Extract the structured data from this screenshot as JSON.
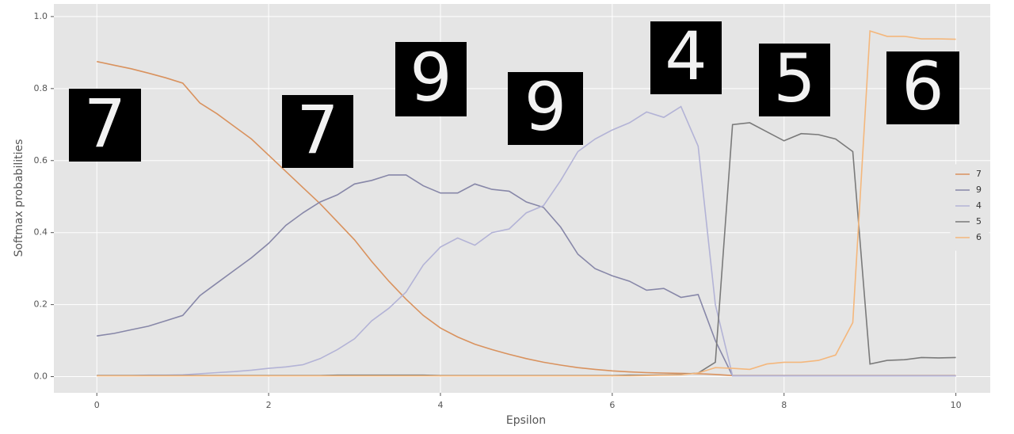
{
  "chart_data": {
    "type": "line",
    "xlabel": "Epsilon",
    "ylabel": "Softmax probabilities",
    "x": [
      0,
      0.2,
      0.4,
      0.6,
      0.8,
      1.0,
      1.2,
      1.4,
      1.6,
      1.8,
      2.0,
      2.2,
      2.4,
      2.6,
      2.8,
      3.0,
      3.2,
      3.4,
      3.6,
      3.8,
      4.0,
      4.2,
      4.4,
      4.6,
      4.8,
      5.0,
      5.2,
      5.4,
      5.6,
      5.8,
      6.0,
      6.2,
      6.4,
      6.6,
      6.8,
      7.0,
      7.2,
      7.4,
      7.6,
      7.8,
      8.0,
      8.2,
      8.4,
      8.6,
      8.8,
      9.0,
      9.2,
      9.4,
      9.6,
      9.8,
      10.0
    ],
    "series": [
      {
        "name": "7",
        "color": "#d9925e",
        "values": [
          0.875,
          0.865,
          0.855,
          0.843,
          0.83,
          0.815,
          0.76,
          0.73,
          0.695,
          0.66,
          0.615,
          0.57,
          0.525,
          0.48,
          0.43,
          0.38,
          0.32,
          0.265,
          0.215,
          0.17,
          0.135,
          0.11,
          0.09,
          0.075,
          0.062,
          0.05,
          0.04,
          0.032,
          0.025,
          0.02,
          0.016,
          0.013,
          0.011,
          0.01,
          0.009,
          0.008,
          0.006,
          0.003,
          0.003,
          0.003,
          0.003,
          0.003,
          0.003,
          0.003,
          0.003,
          0.003,
          0.003,
          0.003,
          0.003,
          0.003,
          0.003
        ]
      },
      {
        "name": "9",
        "color": "#8787a8",
        "values": [
          0.113,
          0.12,
          0.13,
          0.14,
          0.155,
          0.17,
          0.225,
          0.26,
          0.295,
          0.33,
          0.37,
          0.42,
          0.455,
          0.485,
          0.505,
          0.535,
          0.545,
          0.56,
          0.56,
          0.53,
          0.51,
          0.51,
          0.535,
          0.52,
          0.515,
          0.485,
          0.47,
          0.415,
          0.34,
          0.3,
          0.28,
          0.265,
          0.24,
          0.245,
          0.22,
          0.228,
          0.1,
          0.002,
          0.002,
          0.002,
          0.002,
          0.002,
          0.002,
          0.002,
          0.002,
          0.002,
          0.002,
          0.002,
          0.002,
          0.002,
          0.002
        ]
      },
      {
        "name": "4",
        "color": "#b3b3d6",
        "values": [
          0.003,
          0.003,
          0.003,
          0.004,
          0.004,
          0.005,
          0.008,
          0.011,
          0.014,
          0.018,
          0.023,
          0.027,
          0.033,
          0.05,
          0.075,
          0.105,
          0.155,
          0.19,
          0.235,
          0.31,
          0.36,
          0.385,
          0.365,
          0.4,
          0.41,
          0.455,
          0.475,
          0.545,
          0.625,
          0.66,
          0.685,
          0.705,
          0.735,
          0.72,
          0.75,
          0.64,
          0.2,
          0.002,
          0.002,
          0.002,
          0.002,
          0.002,
          0.002,
          0.002,
          0.002,
          0.002,
          0.002,
          0.002,
          0.002,
          0.002,
          0.002
        ]
      },
      {
        "name": "5",
        "color": "#7a7a7a",
        "values": [
          0.003,
          0.003,
          0.003,
          0.003,
          0.003,
          0.003,
          0.003,
          0.003,
          0.003,
          0.003,
          0.003,
          0.003,
          0.003,
          0.003,
          0.004,
          0.004,
          0.004,
          0.004,
          0.004,
          0.004,
          0.003,
          0.003,
          0.003,
          0.003,
          0.003,
          0.003,
          0.003,
          0.003,
          0.003,
          0.003,
          0.003,
          0.004,
          0.004,
          0.005,
          0.006,
          0.01,
          0.04,
          0.7,
          0.705,
          0.68,
          0.655,
          0.675,
          0.672,
          0.66,
          0.625,
          0.035,
          0.045,
          0.047,
          0.053,
          0.052,
          0.053
        ]
      },
      {
        "name": "6",
        "color": "#f4b77c",
        "values": [
          0.002,
          0.002,
          0.002,
          0.002,
          0.002,
          0.002,
          0.002,
          0.002,
          0.002,
          0.002,
          0.002,
          0.002,
          0.002,
          0.002,
          0.002,
          0.002,
          0.002,
          0.002,
          0.002,
          0.002,
          0.002,
          0.002,
          0.002,
          0.002,
          0.002,
          0.002,
          0.002,
          0.002,
          0.002,
          0.002,
          0.002,
          0.002,
          0.003,
          0.004,
          0.005,
          0.01,
          0.025,
          0.023,
          0.02,
          0.035,
          0.04,
          0.04,
          0.045,
          0.06,
          0.15,
          0.96,
          0.945,
          0.945,
          0.938,
          0.938,
          0.937
        ]
      }
    ],
    "images": [
      "7",
      "7",
      "9",
      "9",
      "4",
      "5",
      "6"
    ],
    "xlim": [
      -0.5,
      10.4
    ],
    "ylim": [
      -0.045,
      1.035
    ],
    "xticks": [
      0,
      2,
      4,
      6,
      8,
      10
    ],
    "yticks": [
      {
        "value": 0,
        "label": "0.0"
      },
      0.2,
      0.4,
      0.6,
      0.8,
      {
        "value": 1,
        "label": "1.0"
      }
    ],
    "grid": true,
    "legend": "center right"
  }
}
